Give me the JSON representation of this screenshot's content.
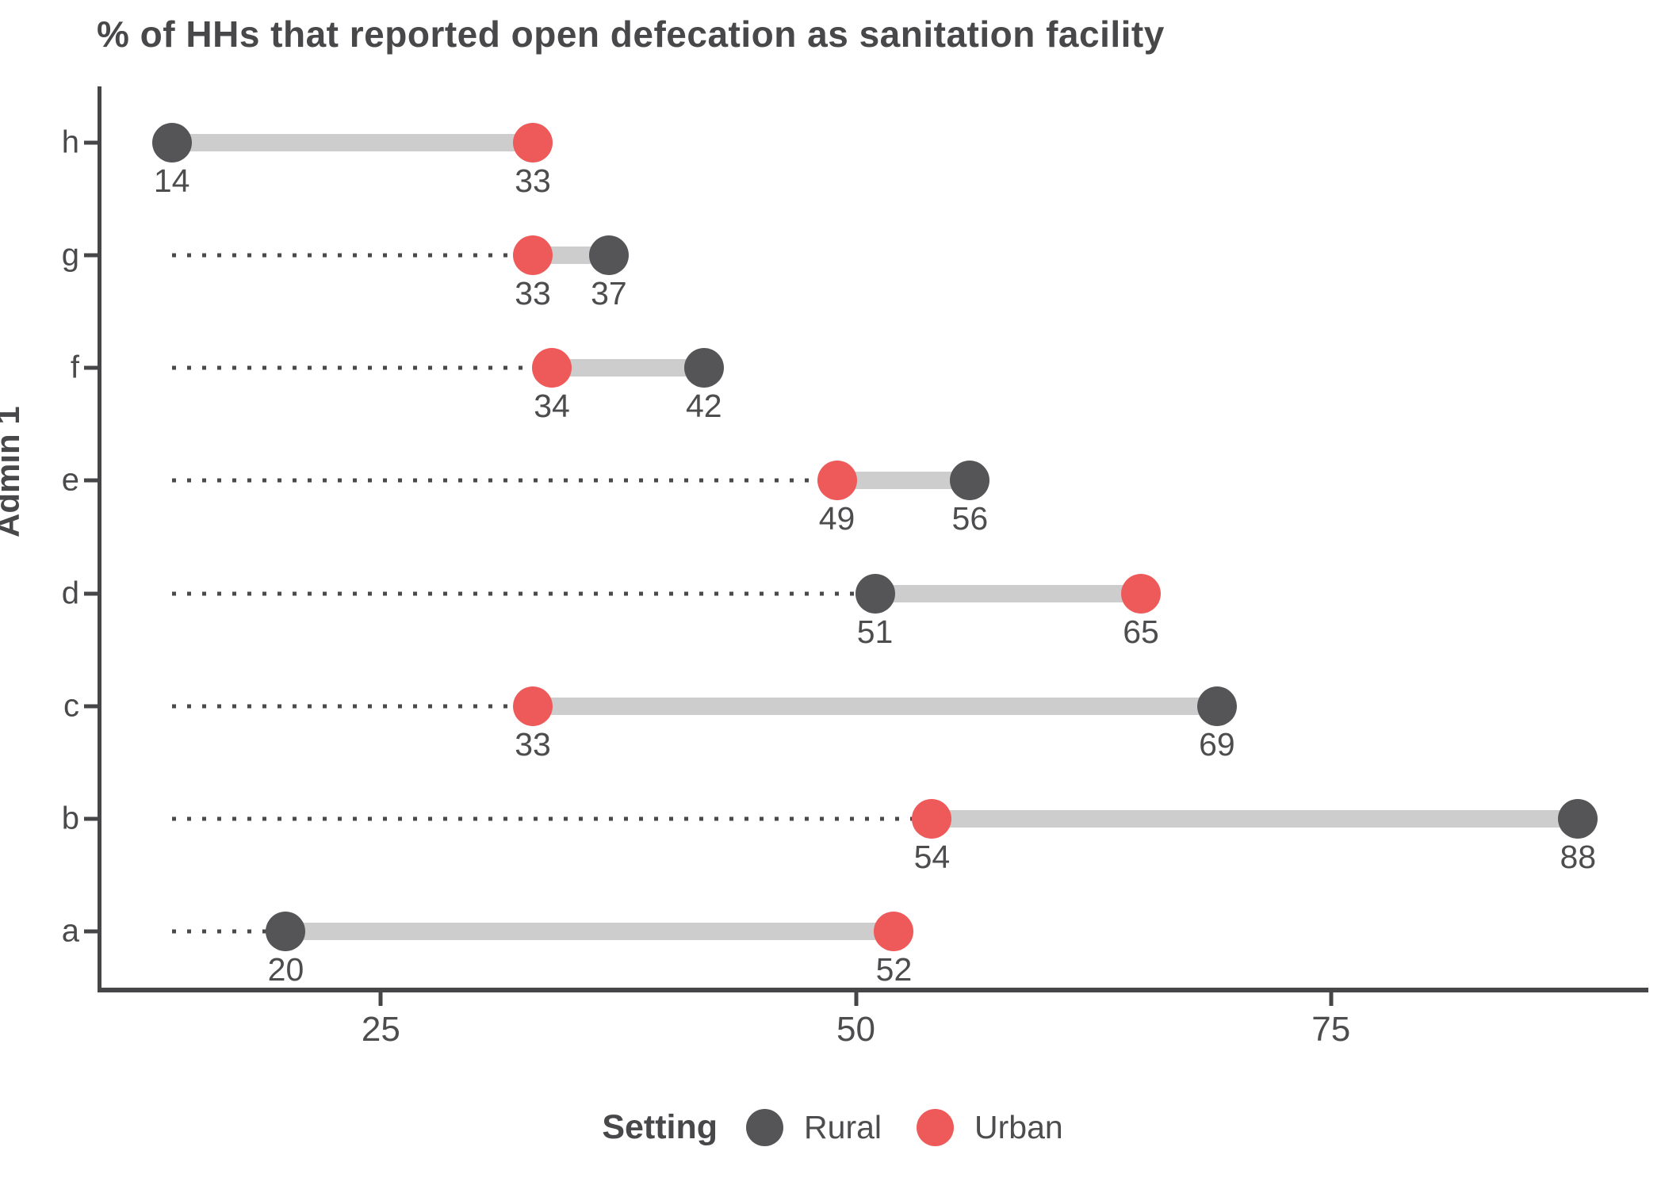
{
  "title": "% of HHs that reported open defecation as sanitation facility",
  "y_axis": {
    "title": "Admin 1",
    "categories_top_to_bottom": [
      "h",
      "g",
      "f",
      "e",
      "d",
      "c",
      "b",
      "a"
    ]
  },
  "x_axis": {
    "tick_labels": [
      "25",
      "50",
      "75"
    ]
  },
  "legend": {
    "title": "Setting",
    "items": [
      {
        "label": "Rural",
        "color": "#555557"
      },
      {
        "label": "Urban",
        "color": "#ee5a5a"
      }
    ]
  },
  "colors": {
    "rural": "#555557",
    "urban": "#ee5a5a",
    "connector": "#cdcdcd",
    "leader_dots": "#4a4a4c",
    "axis": "#464648",
    "text": "#4d4d4f"
  },
  "chart_data": {
    "type": "scatter",
    "subtype": "dumbbell",
    "title": "% of HHs that reported open defecation as sanitation facility",
    "xlabel": "",
    "ylabel": "Admin 1",
    "categories_top_to_bottom": [
      "h",
      "g",
      "f",
      "e",
      "d",
      "c",
      "b",
      "a"
    ],
    "series": [
      {
        "name": "Rural",
        "color": "#555557",
        "values": [
          14,
          37,
          42,
          56,
          51,
          69,
          88,
          20
        ]
      },
      {
        "name": "Urban",
        "color": "#ee5a5a",
        "values": [
          33,
          33,
          34,
          49,
          65,
          33,
          54,
          52
        ]
      }
    ],
    "point_labels_shown": true,
    "x_ticks": [
      25,
      50,
      75
    ],
    "x_domain": [
      10.3,
      91.7
    ],
    "leader_line_start": 14,
    "grid": "off",
    "legend_title": "Setting",
    "legend_position": "bottom"
  }
}
